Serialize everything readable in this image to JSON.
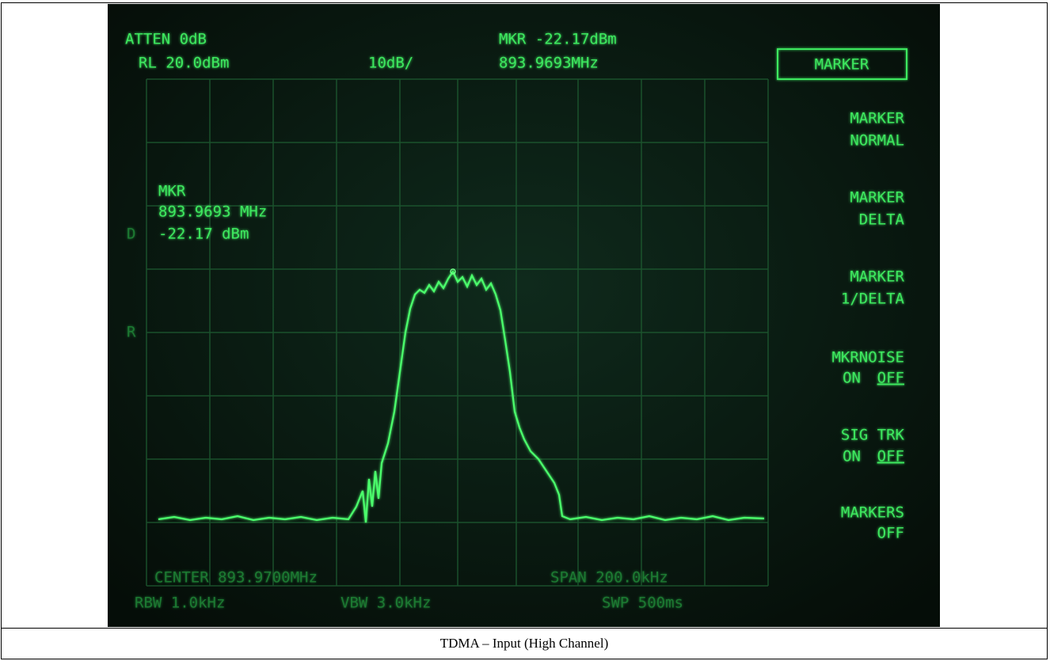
{
  "screen": {
    "header": {
      "atten": "ATTEN 0dB",
      "ref_level": "RL 20.0dBm",
      "scale": "10dB/",
      "marker_level": "MKR -22.17dBm",
      "marker_freq": "893.9693MHz"
    },
    "marker_readout": [
      "MKR",
      "893.9693 MHz",
      "-22.17 dBm"
    ],
    "side_labels": [
      "D",
      "R"
    ],
    "softkeys": {
      "title": "MARKER",
      "keys": [
        {
          "line1": "MARKER",
          "line2": "NORMAL"
        },
        {
          "line1": "MARKER",
          "line2": "DELTA"
        },
        {
          "line1": "MARKER",
          "line2": "1/DELTA"
        },
        {
          "line1": "MKRNOISE",
          "on": "ON",
          "off": "OFF"
        },
        {
          "line1": "SIG TRK",
          "on": "ON",
          "off": "OFF"
        },
        {
          "line1": "MARKERS",
          "line2": "OFF"
        }
      ]
    },
    "footer": {
      "center": "CENTER 893.9700MHz",
      "span": "SPAN 200.0kHz",
      "rbw": "RBW 1.0kHz",
      "vbw": "VBW 3.0kHz",
      "swp": "SWP 500ms"
    }
  },
  "caption": "TDMA – Input (High Channel)"
}
